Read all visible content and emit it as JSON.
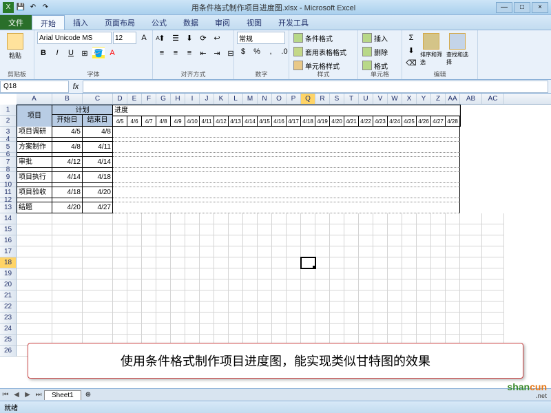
{
  "title": "用条件格式制作项目进度图.xlsx - Microsoft Excel",
  "tabs": {
    "file": "文件",
    "home": "开始",
    "insert": "插入",
    "layout": "页面布局",
    "formula": "公式",
    "data": "数据",
    "review": "审阅",
    "view": "视图",
    "dev": "开发工具"
  },
  "ribbon": {
    "clipboard": {
      "label": "剪贴板",
      "paste": "粘贴"
    },
    "font": {
      "label": "字体",
      "name": "Arial Unicode MS",
      "size": "12",
      "b": "B",
      "i": "I",
      "u": "U"
    },
    "align": {
      "label": "对齐方式"
    },
    "number": {
      "label": "数字",
      "format": "常规"
    },
    "styles": {
      "label": "样式",
      "cond": "条件格式",
      "tblfmt": "套用表格格式",
      "cellfmt": "单元格样式"
    },
    "cells": {
      "label": "单元格",
      "insert": "插入",
      "delete": "删除",
      "format": "格式"
    },
    "edit": {
      "label": "编辑",
      "sort": "排序和筛选",
      "find": "查找和选择"
    }
  },
  "namebox": "Q18",
  "table": {
    "h_project": "项目",
    "h_plan": "计划",
    "h_start": "开始日",
    "h_end": "结束日",
    "h_progress": "进度",
    "rows": [
      {
        "name": "项目调研",
        "start": "4/5",
        "end": "4/8"
      },
      {
        "name": "方案制作",
        "start": "4/8",
        "end": "4/11"
      },
      {
        "name": "审批",
        "start": "4/12",
        "end": "4/14"
      },
      {
        "name": "项目执行",
        "start": "4/14",
        "end": "4/18"
      },
      {
        "name": "项目验收",
        "start": "4/18",
        "end": "4/20"
      },
      {
        "name": "结题",
        "start": "4/20",
        "end": "4/27"
      }
    ],
    "dates": [
      "4/5",
      "4/6",
      "4/7",
      "4/8",
      "4/9",
      "4/10",
      "4/11",
      "4/12",
      "4/13",
      "4/14",
      "4/15",
      "4/16",
      "4/17",
      "4/18",
      "4/19",
      "4/20",
      "4/21",
      "4/22",
      "4/23",
      "4/24",
      "4/25",
      "4/26",
      "4/27",
      "4/28"
    ]
  },
  "cols": [
    "A",
    "B",
    "C",
    "D",
    "E",
    "F",
    "G",
    "H",
    "I",
    "J",
    "K",
    "L",
    "M",
    "N",
    "O",
    "P",
    "Q",
    "R",
    "S",
    "T",
    "U",
    "V",
    "W",
    "X",
    "Y",
    "Z",
    "AA",
    "AB",
    "AC"
  ],
  "colW": {
    "A": 52,
    "B": 44,
    "C": 44,
    "narrow": 21,
    "AB": 32,
    "AC": 32
  },
  "callout": "使用条件格式制作项目进度图，能实现类似甘特图的效果",
  "sheet": "Sheet1",
  "status": "就绪",
  "selected": {
    "col": "Q",
    "row": 18
  },
  "colors": {
    "header_bg": "#b8cce4",
    "tab_file": "#2a6f2a",
    "sel": "#ffd466",
    "ribbon": "#e9f1fa",
    "titlebar1": "#cde5f7",
    "titlebar2": "#a9d0ed"
  }
}
